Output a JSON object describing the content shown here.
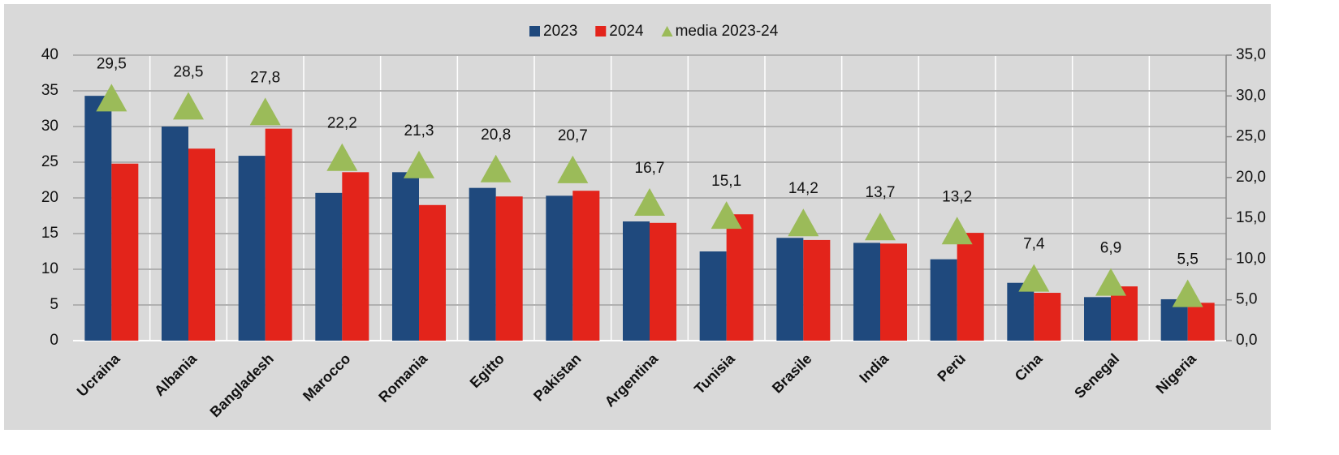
{
  "chart_data": {
    "type": "bar",
    "categories": [
      "Ucraina",
      "Albania",
      "Bangladesh",
      "Marocco",
      "Romania",
      "Egitto",
      "Pakistan",
      "Argentina",
      "Tunisia",
      "Brasile",
      "India",
      "Perù",
      "Cina",
      "Senegal",
      "Nigeria"
    ],
    "series": [
      {
        "name": "2023",
        "color": "#1f497d",
        "values": [
          34.3,
          30.0,
          25.9,
          20.7,
          23.6,
          21.4,
          20.3,
          16.7,
          12.5,
          14.4,
          13.7,
          11.4,
          8.1,
          6.1,
          5.8
        ]
      },
      {
        "name": "2024",
        "color": "#e3241b",
        "values": [
          24.8,
          26.9,
          29.7,
          23.6,
          19.0,
          20.2,
          21.0,
          16.5,
          17.7,
          14.1,
          13.6,
          15.1,
          6.7,
          7.6,
          5.3
        ]
      },
      {
        "name": "media 2023-24",
        "color": "#9bbb59",
        "axis": "y2",
        "marker": "triangle",
        "values": [
          29.5,
          28.5,
          27.8,
          22.2,
          21.3,
          20.8,
          20.7,
          16.7,
          15.1,
          14.2,
          13.7,
          13.2,
          7.4,
          6.9,
          5.5
        ],
        "value_labels": [
          "29,5",
          "28,5",
          "27,8",
          "22,2",
          "21,3",
          "20,8",
          "20,7",
          "16,7",
          "15,1",
          "14,2",
          "13,7",
          "13,2",
          "7,4",
          "6,9",
          "5,5"
        ]
      }
    ],
    "ylim": [
      0,
      40
    ],
    "yticks": [
      0,
      5,
      10,
      15,
      20,
      25,
      30,
      35,
      40
    ],
    "y2lim": [
      0,
      35
    ],
    "y2ticks": [
      {
        "value": 0,
        "label": "0,0"
      },
      {
        "value": 5,
        "label": "5,0"
      },
      {
        "value": 10,
        "label": "10,0"
      },
      {
        "value": 15,
        "label": "15,0"
      },
      {
        "value": 20,
        "label": "20,0"
      },
      {
        "value": 25,
        "label": "25,0"
      },
      {
        "value": 30,
        "label": "30,0"
      },
      {
        "value": 35,
        "label": "35,0"
      }
    ],
    "grid": true,
    "legend": "top"
  }
}
